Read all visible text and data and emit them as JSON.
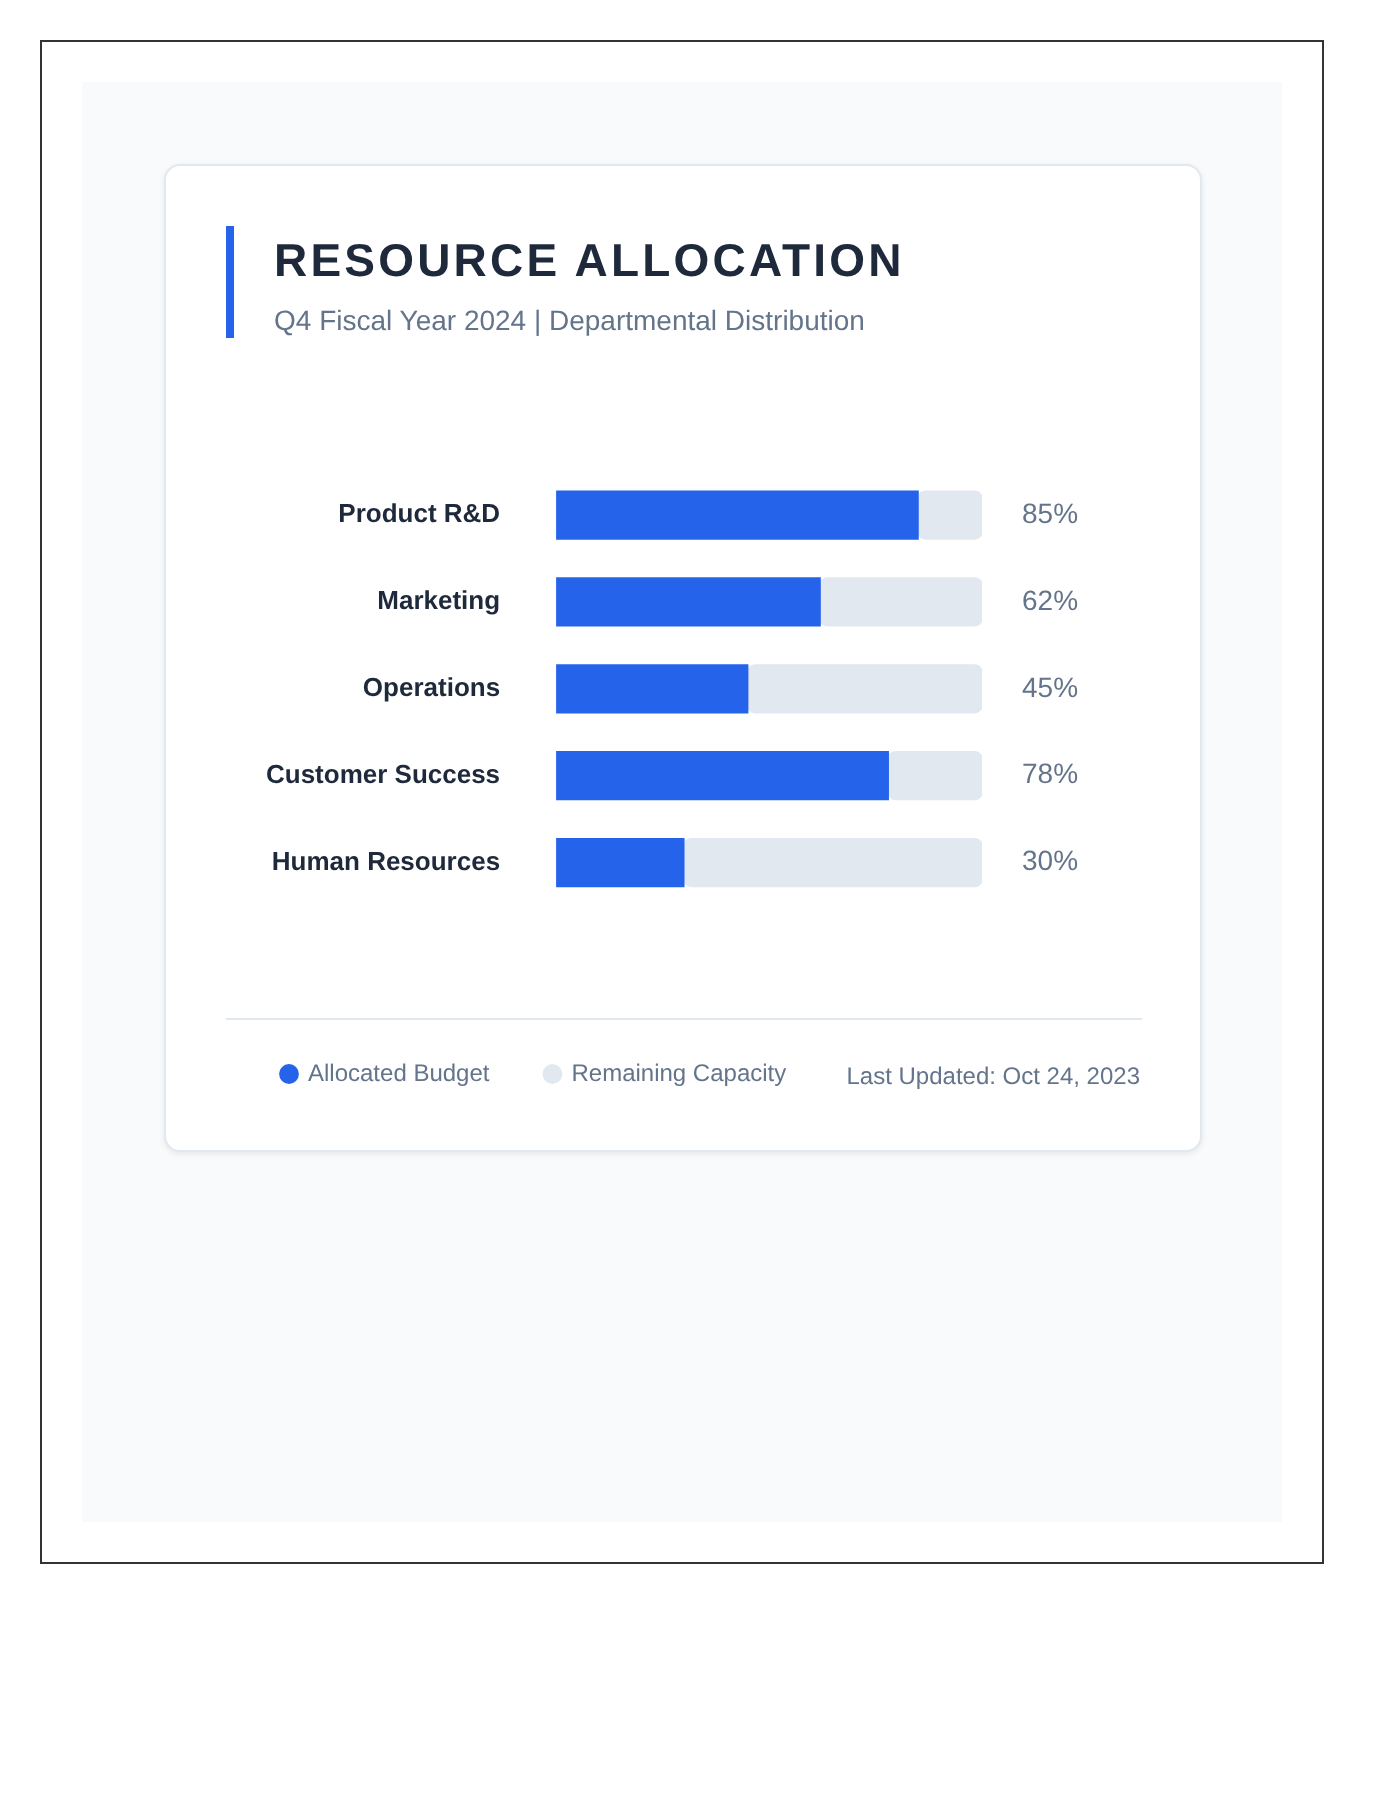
{
  "chart_data": {
    "type": "bar",
    "orientation": "horizontal",
    "stacked": true,
    "title": "RESOURCE ALLOCATION",
    "subtitle": "Q4 Fiscal Year 2024 | Departmental Distribution",
    "categories": [
      "Product R&D",
      "Marketing",
      "Operations",
      "Customer Success",
      "Human Resources"
    ],
    "series": [
      {
        "name": "Allocated Budget",
        "color": "#2563eb",
        "values": [
          85,
          62,
          45,
          78,
          30
        ],
        "value_labels": [
          "85%",
          "62%",
          "45%",
          "78%",
          "30%"
        ]
      },
      {
        "name": "Remaining Capacity",
        "color": "#e2e8f0",
        "values": [
          15,
          38,
          55,
          22,
          70
        ]
      }
    ],
    "xlim": [
      0,
      100
    ],
    "tick_labels": "y",
    "grid": false,
    "legend": "bottom left",
    "annotations": [
      "Last Updated: Oct 24, 2023"
    ]
  }
}
